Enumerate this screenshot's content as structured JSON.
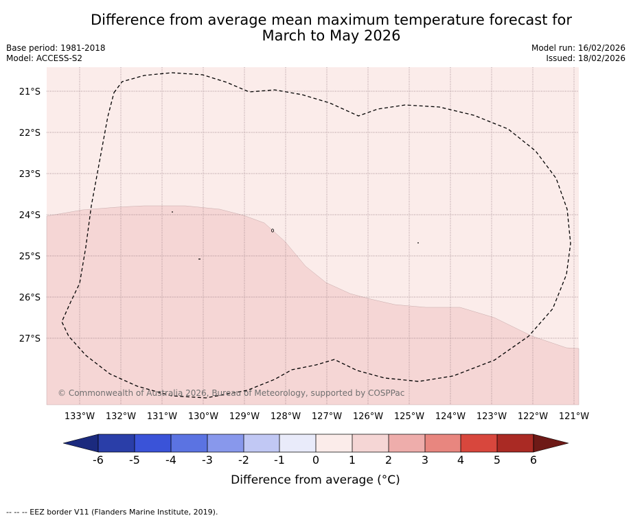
{
  "title": {
    "line1": "Difference from average mean maximum temperature forecast for",
    "line2": "March to May 2026"
  },
  "meta": {
    "base_period": "Base period: 1981-2018",
    "model": "Model: ACCESS-S2",
    "model_run": "Model run: 16/02/2026",
    "issued": "Issued: 18/02/2026"
  },
  "map": {
    "lon_labels": [
      "133°W",
      "132°W",
      "131°W",
      "130°W",
      "129°W",
      "128°W",
      "127°W",
      "126°W",
      "125°W",
      "124°W",
      "123°W",
      "122°W",
      "121°W"
    ],
    "lat_labels": [
      "21°S",
      "22°S",
      "23°S",
      "24°S",
      "25°S",
      "26°S",
      "27°S"
    ],
    "copyright": "© Commonwealth of Australia 2026, Bureau of Meteorology, supported by COSPPac",
    "colors": {
      "region_0_1": "#fbecea",
      "region_1_2": "#f5d6d5",
      "gridline": "#8a6f77",
      "eez_border": "#000000"
    }
  },
  "colorbar": {
    "ticks": [
      "-6",
      "-5",
      "-4",
      "-3",
      "-2",
      "-1",
      "0",
      "1",
      "2",
      "3",
      "4",
      "5",
      "6"
    ],
    "label": "Difference from average (°C)",
    "colors": [
      "#1b2a7e",
      "#2a3ea8",
      "#3a53d8",
      "#5b73e2",
      "#8898ec",
      "#c1c8f4",
      "#e9ebfa",
      "#fbecea",
      "#f5d6d5",
      "#eeadab",
      "#e8867f",
      "#d8473d",
      "#aa2a24",
      "#6e1a17"
    ]
  },
  "footnote": "--  --  -- EEZ border V11 (Flanders Marine Institute, 2019)."
}
